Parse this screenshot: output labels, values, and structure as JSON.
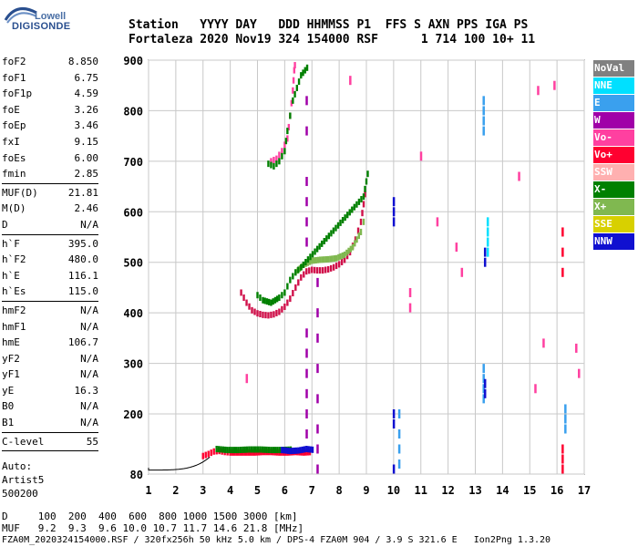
{
  "logo": {
    "line1": "Lowell",
    "line2": "DIGISONDE"
  },
  "header": {
    "labels_line": "Station   YYYY DAY   DDD HHMMSS P1  FFS S AXN PPS IGA PS",
    "values_line": "Fortaleza 2020 Nov19 324 154000 RSF      1 714 100 10+ 11"
  },
  "params": {
    "group1": [
      {
        "name": "foF2",
        "value": "8.850"
      },
      {
        "name": "foF1",
        "value": "6.75"
      },
      {
        "name": "foF1p",
        "value": "4.59"
      },
      {
        "name": "foE",
        "value": "3.26"
      },
      {
        "name": "foEp",
        "value": "3.46"
      },
      {
        "name": "fxI",
        "value": "9.15"
      },
      {
        "name": "foEs",
        "value": "6.00"
      },
      {
        "name": "fmin",
        "value": "2.85"
      }
    ],
    "group2": [
      {
        "name": "MUF(D)",
        "value": "21.81"
      },
      {
        "name": "M(D)",
        "value": "2.46"
      },
      {
        "name": "D",
        "value": "N/A"
      }
    ],
    "group3": [
      {
        "name": "h`F",
        "value": "395.0"
      },
      {
        "name": "h`F2",
        "value": "480.0"
      },
      {
        "name": "h`E",
        "value": "116.1"
      },
      {
        "name": "h`Es",
        "value": "115.0"
      }
    ],
    "group4": [
      {
        "name": "hmF2",
        "value": "N/A"
      },
      {
        "name": "hmF1",
        "value": "N/A"
      },
      {
        "name": "hmE",
        "value": "106.7"
      },
      {
        "name": "yF2",
        "value": "N/A"
      },
      {
        "name": "yF1",
        "value": "N/A"
      },
      {
        "name": "yE",
        "value": "16.3"
      },
      {
        "name": "B0",
        "value": "N/A"
      },
      {
        "name": "B1",
        "value": "N/A"
      }
    ],
    "group5": [
      {
        "name": "C-level",
        "value": "55"
      }
    ],
    "auto": [
      "Auto:",
      "Artist5",
      "500200"
    ]
  },
  "legend": [
    {
      "label": "NoVal",
      "bg": "#808080",
      "fg": "#ffffff"
    },
    {
      "label": "NNE",
      "bg": "#00e0ff",
      "fg": "#ffffff"
    },
    {
      "label": "E",
      "bg": "#3aa0ee",
      "fg": "#ffffff"
    },
    {
      "label": "W",
      "bg": "#a000a8",
      "fg": "#ffffff"
    },
    {
      "label": "Vo-",
      "bg": "#ff40a0",
      "fg": "#ffffff"
    },
    {
      "label": "Vo+",
      "bg": "#ff0030",
      "fg": "#ffffff"
    },
    {
      "label": "SSW",
      "bg": "#ffb0b0",
      "fg": "#ffffff"
    },
    {
      "label": "X-",
      "bg": "#008000",
      "fg": "#ffffff"
    },
    {
      "label": "X+",
      "bg": "#80b850",
      "fg": "#ffffff"
    },
    {
      "label": "SSE",
      "bg": "#d8d000",
      "fg": "#ffffff"
    },
    {
      "label": "NNW",
      "bg": "#1010d0",
      "fg": "#ffffff"
    }
  ],
  "bottom": {
    "d_line": "D     100  200  400  600  800 1000 1500 3000 [km]",
    "muf_line": "MUF   9.2  9.3  9.6 10.0 10.7 11.7 14.6 21.8 [MHz]",
    "footer": "FZA0M_2020324154000.RSF / 320fx256h 50 kHz 5.0 km / DPS-4 FZA0M 904 / 3.9 S 321.6 E   Ion2Png 1.3.20"
  },
  "chart_data": {
    "type": "scatter",
    "title": "",
    "xlabel": "",
    "ylabel": "",
    "xlim": [
      1,
      17
    ],
    "ylim": [
      80,
      900
    ],
    "xticks": [
      1,
      2,
      3,
      4,
      5,
      6,
      7,
      8,
      9,
      10,
      11,
      12,
      13,
      14,
      15,
      16,
      17
    ],
    "yticks": [
      80,
      200,
      300,
      400,
      500,
      600,
      700,
      800,
      900
    ],
    "grid": true,
    "colors": {
      "NoVal": "#808080",
      "NNE": "#00e0ff",
      "E": "#3aa0ee",
      "W": "#a000a8",
      "Vo-": "#ff40a0",
      "Vo+": "#ff0030",
      "SSW": "#ffb0b0",
      "X-": "#008000",
      "X+": "#80b850",
      "SSE": "#d8d000",
      "NNW": "#1010d0"
    },
    "traces": [
      {
        "name": "E-layer trace (Vo+)",
        "color": "#ff0030",
        "x": [
          3.0,
          3.2,
          3.4,
          3.6,
          3.8,
          4.0,
          4.3,
          4.6,
          4.9,
          5.2,
          5.5,
          5.8,
          6.1,
          6.4,
          6.7,
          7.0
        ],
        "y": [
          116,
          120,
          125,
          126,
          124,
          123,
          123,
          123,
          123,
          124,
          124,
          123,
          123,
          124,
          123,
          124
        ]
      },
      {
        "name": "E-layer trace (X-)",
        "color": "#008000",
        "x": [
          3.5,
          3.9,
          4.3,
          4.7,
          5.1,
          5.5,
          5.9,
          6.3
        ],
        "y": [
          130,
          128,
          128,
          129,
          129,
          128,
          128,
          129
        ]
      },
      {
        "name": "E-layer trace (NNW)",
        "color": "#1010d0",
        "x": [
          5.9,
          6.2,
          6.5,
          6.8,
          7.1
        ],
        "y": [
          128,
          126,
          127,
          130,
          128
        ]
      },
      {
        "name": "F-layer trace (Vo+)",
        "color": "#d0104a",
        "x": [
          4.4,
          4.6,
          4.8,
          5.0,
          5.2,
          5.4,
          5.6,
          5.8,
          6.0,
          6.2,
          6.4,
          6.6,
          6.8,
          7.0,
          7.2,
          7.4,
          7.6,
          7.8,
          8.0,
          8.2,
          8.4,
          8.6,
          8.8,
          8.9,
          9.0
        ],
        "y": [
          440,
          420,
          405,
          399,
          396,
          395,
          397,
          402,
          412,
          428,
          450,
          470,
          482,
          485,
          484,
          484,
          486,
          490,
          496,
          505,
          520,
          545,
          580,
          615,
          655
        ]
      },
      {
        "name": "F-layer trace (X+)",
        "color": "#80b850",
        "x": [
          6.4,
          6.7,
          7.0,
          7.3,
          7.6,
          7.9,
          8.2,
          8.5,
          8.8,
          9.0
        ],
        "y": [
          480,
          495,
          503,
          505,
          506,
          508,
          515,
          530,
          560,
          600
        ]
      },
      {
        "name": "F-layer trace (X-)",
        "color": "#008000",
        "x": [
          5.0,
          5.2,
          5.5,
          5.8,
          6.0,
          6.2,
          6.4,
          6.6,
          8.9,
          9.0,
          9.1
        ],
        "y": [
          435,
          425,
          420,
          430,
          440,
          465,
          480,
          490,
          630,
          660,
          690
        ]
      },
      {
        "name": "Extraordinary upper trace (Vo-)",
        "color": "#ff40a0",
        "x": [
          5.5,
          5.7,
          5.9,
          6.1,
          6.2,
          6.3,
          6.35,
          6.4
        ],
        "y": [
          700,
          705,
          720,
          745,
          790,
          840,
          880,
          900
        ]
      },
      {
        "name": "Extraordinary upper trace (X-)",
        "color": "#008000",
        "x": [
          5.4,
          5.6,
          5.8,
          6.0,
          6.1,
          6.3,
          6.6,
          6.9
        ],
        "y": [
          695,
          690,
          700,
          720,
          760,
          820,
          870,
          890
        ]
      },
      {
        "name": "Vertical streak 6.8 (W)",
        "color": "#a000a8",
        "x": [
          6.8,
          6.8,
          6.8,
          6.8,
          6.8,
          6.8,
          6.8,
          6.8,
          6.8,
          6.8,
          6.8,
          6.8
        ],
        "y": [
          160,
          200,
          240,
          280,
          320,
          360,
          540,
          580,
          620,
          660,
          760,
          820
        ]
      },
      {
        "name": "Vertical streak 7.2 (W)",
        "color": "#a000a8",
        "x": [
          7.2,
          7.2,
          7.2,
          7.2,
          7.2,
          7.2,
          7.2,
          7.2
        ],
        "y": [
          90,
          130,
          170,
          230,
          290,
          350,
          400,
          460
        ]
      },
      {
        "name": "Streak 10.0 (NNW)",
        "color": "#1010d0",
        "x": [
          10.0,
          10.0,
          10.0,
          10.0,
          10.0,
          10.0
        ],
        "y": [
          90,
          180,
          200,
          580,
          600,
          620
        ]
      },
      {
        "name": "Streak 10.2 (E)",
        "color": "#3aa0ee",
        "x": [
          10.2,
          10.2,
          10.2,
          10.2
        ],
        "y": [
          100,
          130,
          160,
          200
        ]
      },
      {
        "name": "Streak 13.3 (E)",
        "color": "#3aa0ee",
        "x": [
          13.3,
          13.3,
          13.3,
          13.3,
          13.3,
          13.3,
          13.3,
          13.3
        ],
        "y": [
          230,
          250,
          270,
          290,
          760,
          780,
          800,
          820
        ]
      },
      {
        "name": "Streak 13.3 (NNW)",
        "color": "#1010d0",
        "x": [
          13.35,
          13.35,
          13.35,
          13.35
        ],
        "y": [
          240,
          260,
          500,
          520
        ]
      },
      {
        "name": "Streak 13.4 (NNE)",
        "color": "#00e0ff",
        "x": [
          13.45,
          13.45,
          13.45,
          13.45
        ],
        "y": [
          520,
          540,
          560,
          580
        ]
      },
      {
        "name": "Streak 16.2 (Vo+)",
        "color": "#ff0030",
        "x": [
          16.2,
          16.2,
          16.2,
          16.2,
          16.2,
          16.2
        ],
        "y": [
          90,
          110,
          130,
          480,
          520,
          560
        ]
      },
      {
        "name": "Streak 16.3 (E)",
        "color": "#3aa0ee",
        "x": [
          16.3,
          16.3,
          16.3
        ],
        "y": [
          170,
          190,
          210
        ]
      },
      {
        "name": "Scattered (mixed)",
        "color": "#ff40a0",
        "x": [
          4.6,
          10.6,
          11.6,
          12.3,
          14.6,
          15.3,
          15.5,
          15.9,
          16.7,
          16.8,
          11.0,
          10.6,
          12.5,
          15.2,
          8.4
        ],
        "y": [
          270,
          410,
          580,
          530,
          670,
          840,
          340,
          850,
          330,
          280,
          710,
          440,
          480,
          250,
          860
        ]
      }
    ]
  }
}
